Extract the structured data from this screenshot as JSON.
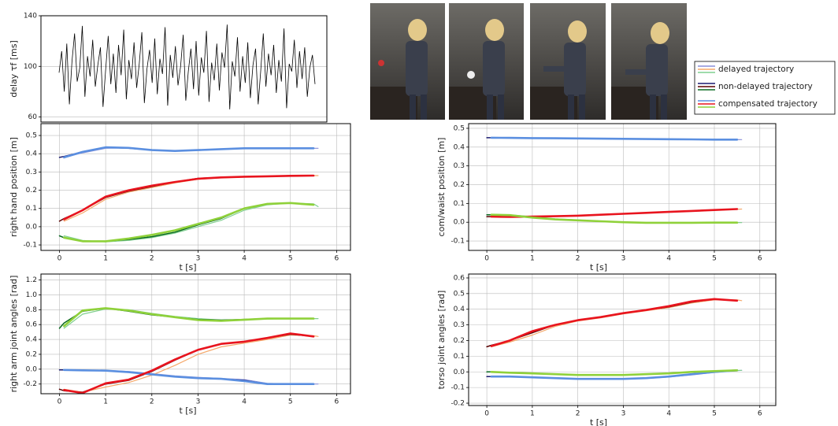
{
  "chart_data": [
    {
      "type": "line",
      "ylabel": "delay τf [ms]",
      "ylim": [
        56,
        140
      ],
      "yticks": [
        60,
        100,
        140
      ],
      "color": "#000000",
      "values": [
        95,
        112,
        80,
        118,
        70,
        104,
        126,
        88,
        99,
        132,
        76,
        108,
        92,
        121,
        84,
        101,
        115,
        68,
        97,
        124,
        86,
        110,
        79,
        117,
        93,
        129,
        74,
        105,
        90,
        119,
        83,
        102,
        127,
        71,
        98,
        113,
        87,
        122,
        78,
        106,
        94,
        131,
        69,
        109,
        91,
        116,
        85,
        100,
        125,
        73,
        96,
        114,
        82,
        120,
        77,
        107,
        95,
        128,
        72,
        103,
        89,
        118,
        81,
        111,
        99,
        133,
        66,
        104,
        92,
        123,
        80,
        108,
        87,
        119,
        75,
        101,
        114,
        70,
        97,
        126,
        84,
        110,
        93,
        117,
        79,
        105,
        88,
        130,
        67,
        102,
        96,
        121,
        83,
        112,
        90,
        115,
        76,
        99,
        109,
        86
      ]
    },
    {
      "type": "line",
      "ylabel": "right hand position [m]",
      "xlabel": "t [s]",
      "xlim": [
        -0.4,
        6.3
      ],
      "ylim": [
        -0.13,
        0.565
      ],
      "xticks": [
        0,
        1,
        2,
        3,
        4,
        5,
        6
      ],
      "yticks": [
        0.5,
        0.4,
        0.3,
        0.2,
        0.1,
        {
          "value": 0,
          "label": "0.0"
        },
        -0.1
      ],
      "x": [
        0,
        0.1,
        0.5,
        1,
        1.5,
        2,
        2.5,
        3,
        3.5,
        4,
        4.5,
        5,
        5.5,
        5.6
      ],
      "series": [
        {
          "name": "delayed trajectory",
          "color": "#8a8fd8",
          "values": [
            null,
            0.38,
            0.405,
            0.43,
            0.432,
            0.422,
            0.415,
            0.418,
            0.424,
            0.428,
            0.43,
            0.43,
            0.43,
            0.43
          ]
        },
        {
          "name": "delayed trajectory",
          "color": "#f5a86a",
          "values": [
            null,
            0.03,
            0.075,
            0.15,
            0.19,
            0.215,
            0.24,
            0.26,
            0.268,
            0.272,
            0.275,
            0.278,
            0.28,
            0.28
          ]
        },
        {
          "name": "delayed trajectory",
          "color": "#7fcf8f",
          "values": [
            null,
            -0.05,
            -0.075,
            -0.083,
            -0.075,
            -0.06,
            -0.035,
            0.0,
            0.035,
            0.09,
            0.12,
            0.13,
            0.125,
            0.11
          ]
        },
        {
          "name": "non-delayed trajectory",
          "color": "#1a1a70",
          "values": [
            0.38,
            0.385,
            0.41,
            0.435,
            0.43,
            0.42,
            0.415,
            0.42,
            0.425,
            0.43,
            0.43,
            0.43,
            0.43,
            null
          ]
        },
        {
          "name": "non-delayed trajectory",
          "color": "#5a0000",
          "values": [
            0.03,
            0.045,
            0.09,
            0.16,
            0.195,
            0.22,
            0.245,
            0.265,
            0.27,
            0.275,
            0.275,
            0.28,
            0.28,
            null
          ]
        },
        {
          "name": "non-delayed trajectory",
          "color": "#0a6a20",
          "values": [
            -0.05,
            -0.06,
            -0.08,
            -0.08,
            -0.07,
            -0.055,
            -0.03,
            0.01,
            0.045,
            0.1,
            0.125,
            0.13,
            0.12,
            null
          ]
        },
        {
          "name": "compensated trajectory",
          "color": "#5b8fe0",
          "values": [
            null,
            0.38,
            0.41,
            0.435,
            0.432,
            0.42,
            0.415,
            0.42,
            0.425,
            0.43,
            0.43,
            0.43,
            0.43,
            null
          ]
        },
        {
          "name": "compensated trajectory",
          "color": "#e8141e",
          "values": [
            null,
            0.04,
            0.09,
            0.165,
            0.2,
            0.225,
            0.245,
            0.263,
            0.27,
            0.274,
            0.276,
            0.279,
            0.28,
            null
          ]
        },
        {
          "name": "compensated trajectory",
          "color": "#8fd13a",
          "values": [
            null,
            -0.06,
            -0.08,
            -0.08,
            -0.065,
            -0.045,
            -0.02,
            0.015,
            0.05,
            0.1,
            0.125,
            0.13,
            0.12,
            null
          ]
        }
      ]
    },
    {
      "type": "line",
      "ylabel": "right arm joint angles [rad]",
      "xlabel": "t [s]",
      "xlim": [
        -0.4,
        6.3
      ],
      "ylim": [
        -0.33,
        1.28
      ],
      "xticks": [
        0,
        1,
        2,
        3,
        4,
        5,
        6
      ],
      "yticks": [
        1.2,
        {
          "value": 1,
          "label": "1.0"
        },
        0.8,
        0.6,
        0.4,
        0.2,
        {
          "value": 0,
          "label": "0.0"
        },
        -0.2
      ],
      "x": [
        0,
        0.1,
        0.5,
        1,
        1.5,
        2,
        2.5,
        3,
        3.5,
        4,
        4.5,
        5,
        5.5,
        5.6
      ],
      "series": [
        {
          "name": "delayed trajectory",
          "color": "#8a8fd8",
          "values": [
            null,
            -0.01,
            -0.012,
            -0.018,
            -0.03,
            -0.06,
            -0.09,
            -0.11,
            -0.125,
            -0.14,
            -0.19,
            -0.2,
            -0.2,
            -0.2
          ]
        },
        {
          "name": "delayed trajectory",
          "color": "#f5a86a",
          "values": [
            null,
            -0.27,
            -0.31,
            -0.24,
            -0.18,
            -0.08,
            0.05,
            0.2,
            0.3,
            0.35,
            0.4,
            0.46,
            0.45,
            0.44
          ]
        },
        {
          "name": "delayed trajectory",
          "color": "#7fcf8f",
          "values": [
            null,
            0.55,
            0.74,
            0.81,
            0.8,
            0.75,
            0.71,
            0.68,
            0.66,
            0.665,
            0.675,
            0.68,
            0.68,
            0.68
          ]
        },
        {
          "name": "non-delayed trajectory",
          "color": "#1a1a70",
          "values": [
            -0.01,
            -0.01,
            -0.015,
            -0.02,
            -0.04,
            -0.07,
            -0.1,
            -0.12,
            -0.13,
            -0.15,
            -0.2,
            -0.2,
            -0.2,
            null
          ]
        },
        {
          "name": "non-delayed trajectory",
          "color": "#5a0000",
          "values": [
            -0.27,
            -0.29,
            -0.31,
            -0.2,
            -0.15,
            -0.03,
            0.12,
            0.26,
            0.34,
            0.37,
            0.42,
            0.47,
            0.44,
            null
          ]
        },
        {
          "name": "non-delayed trajectory",
          "color": "#0a6a20",
          "values": [
            0.55,
            0.62,
            0.78,
            0.82,
            0.78,
            0.73,
            0.7,
            0.67,
            0.66,
            0.67,
            0.68,
            0.68,
            0.68,
            null
          ]
        },
        {
          "name": "compensated trajectory",
          "color": "#5b8fe0",
          "values": [
            null,
            -0.01,
            -0.015,
            -0.02,
            -0.04,
            -0.07,
            -0.1,
            -0.12,
            -0.13,
            -0.16,
            -0.2,
            -0.2,
            -0.2,
            null
          ]
        },
        {
          "name": "compensated trajectory",
          "color": "#e8141e",
          "values": [
            null,
            -0.28,
            -0.32,
            -0.19,
            -0.14,
            -0.02,
            0.13,
            0.26,
            0.34,
            0.37,
            0.42,
            0.48,
            0.44,
            null
          ]
        },
        {
          "name": "compensated trajectory",
          "color": "#8fd13a",
          "values": [
            null,
            0.58,
            0.79,
            0.82,
            0.79,
            0.74,
            0.7,
            0.66,
            0.65,
            0.665,
            0.68,
            0.68,
            0.68,
            null
          ]
        }
      ]
    },
    {
      "type": "line",
      "ylabel": "com/waist position [m]",
      "xlabel": "t [s]",
      "xlim": [
        -0.4,
        6.35
      ],
      "ylim": [
        -0.15,
        0.525
      ],
      "xticks": [
        0,
        1,
        2,
        3,
        4,
        5,
        6
      ],
      "yticks": [
        0.5,
        0.4,
        0.3,
        0.2,
        0.1,
        {
          "value": 0,
          "label": "0.0"
        },
        -0.1
      ],
      "x": [
        0,
        0.1,
        0.5,
        1,
        1.5,
        2,
        2.5,
        3,
        3.5,
        4,
        4.5,
        5,
        5.5,
        5.6
      ],
      "series": [
        {
          "name": "delayed trajectory",
          "color": "#8a8fd8",
          "values": [
            null,
            0.45,
            0.449,
            0.448,
            0.447,
            0.446,
            0.445,
            0.444,
            0.443,
            0.442,
            0.441,
            0.44,
            0.44,
            0.44
          ]
        },
        {
          "name": "delayed trajectory",
          "color": "#f5a86a",
          "values": [
            null,
            0.03,
            0.028,
            0.029,
            0.031,
            0.034,
            0.039,
            0.044,
            0.049,
            0.054,
            0.059,
            0.064,
            0.069,
            0.07
          ]
        },
        {
          "name": "delayed trajectory",
          "color": "#7fcf8f",
          "values": [
            null,
            0.04,
            0.039,
            0.03,
            0.018,
            0.012,
            0.006,
            0.001,
            -0.002,
            -0.003,
            -0.003,
            -0.002,
            -0.002,
            -0.002
          ]
        },
        {
          "name": "non-delayed trajectory",
          "color": "#1a1a70",
          "values": [
            0.45,
            0.45,
            0.449,
            0.448,
            0.447,
            0.446,
            0.445,
            0.444,
            0.443,
            0.442,
            0.441,
            0.44,
            0.44,
            null
          ]
        },
        {
          "name": "non-delayed trajectory",
          "color": "#5a0000",
          "values": [
            0.03,
            0.03,
            0.028,
            0.03,
            0.032,
            0.035,
            0.04,
            0.045,
            0.05,
            0.055,
            0.06,
            0.065,
            0.07,
            null
          ]
        },
        {
          "name": "non-delayed trajectory",
          "color": "#0a6a20",
          "values": [
            0.04,
            0.04,
            0.038,
            0.025,
            0.015,
            0.01,
            0.005,
            0,
            -0.003,
            -0.003,
            -0.003,
            -0.002,
            -0.002,
            null
          ]
        },
        {
          "name": "compensated trajectory",
          "color": "#5b8fe0",
          "values": [
            null,
            0.45,
            0.449,
            0.448,
            0.447,
            0.446,
            0.445,
            0.444,
            0.443,
            0.442,
            0.441,
            0.44,
            0.44,
            null
          ]
        },
        {
          "name": "compensated trajectory",
          "color": "#e8141e",
          "values": [
            null,
            0.03,
            0.028,
            0.03,
            0.032,
            0.035,
            0.04,
            0.045,
            0.05,
            0.055,
            0.06,
            0.065,
            0.07,
            null
          ]
        },
        {
          "name": "compensated trajectory",
          "color": "#8fd13a",
          "values": [
            null,
            0.04,
            0.038,
            0.025,
            0.015,
            0.01,
            0.005,
            0,
            -0.003,
            -0.003,
            -0.003,
            -0.002,
            -0.002,
            null
          ]
        }
      ]
    },
    {
      "type": "line",
      "ylabel": "torso joint angles [rad]",
      "xlabel": "t [s]",
      "xlim": [
        -0.4,
        6.35
      ],
      "ylim": [
        -0.215,
        0.625
      ],
      "xticks": [
        0,
        1,
        2,
        3,
        4,
        5,
        6
      ],
      "yticks": [
        0.6,
        0.5,
        0.4,
        0.3,
        0.2,
        0.1,
        {
          "value": 0,
          "label": "0.0"
        },
        -0.1,
        -0.2
      ],
      "x": [
        0,
        0.1,
        0.5,
        1,
        1.5,
        2,
        2.5,
        3,
        3.5,
        4,
        4.5,
        5,
        5.5,
        5.6
      ],
      "series": [
        {
          "name": "delayed trajectory",
          "color": "#8a8fd8",
          "values": [
            null,
            -0.03,
            -0.03,
            -0.033,
            -0.038,
            -0.043,
            -0.045,
            -0.045,
            -0.042,
            -0.033,
            -0.02,
            -0.003,
            0.008,
            0.01
          ]
        },
        {
          "name": "delayed trajectory",
          "color": "#f5a86a",
          "values": [
            null,
            0.16,
            0.19,
            0.235,
            0.29,
            0.325,
            0.345,
            0.37,
            0.39,
            0.41,
            0.44,
            0.46,
            0.46,
            0.455
          ]
        },
        {
          "name": "delayed trajectory",
          "color": "#7fcf8f",
          "values": [
            null,
            0,
            -0.004,
            -0.009,
            -0.014,
            -0.019,
            -0.02,
            -0.02,
            -0.016,
            -0.011,
            -0.002,
            0.004,
            0.009,
            0.01
          ]
        },
        {
          "name": "non-delayed trajectory",
          "color": "#1a1a70",
          "values": [
            -0.03,
            -0.03,
            -0.03,
            -0.035,
            -0.04,
            -0.045,
            -0.045,
            -0.045,
            -0.04,
            -0.03,
            -0.015,
            0,
            0.01,
            null
          ]
        },
        {
          "name": "non-delayed trajectory",
          "color": "#5a0000",
          "values": [
            0.16,
            0.17,
            0.2,
            0.25,
            0.3,
            0.33,
            0.35,
            0.375,
            0.395,
            0.415,
            0.445,
            0.465,
            0.455,
            null
          ]
        },
        {
          "name": "non-delayed trajectory",
          "color": "#0a6a20",
          "values": [
            0,
            0,
            -0.005,
            -0.01,
            -0.015,
            -0.02,
            -0.02,
            -0.02,
            -0.015,
            -0.01,
            0,
            0.005,
            0.01,
            null
          ]
        },
        {
          "name": "compensated trajectory",
          "color": "#5b8fe0",
          "values": [
            null,
            -0.03,
            -0.03,
            -0.035,
            -0.04,
            -0.045,
            -0.045,
            -0.045,
            -0.04,
            -0.03,
            -0.015,
            0,
            0.01,
            null
          ]
        },
        {
          "name": "compensated trajectory",
          "color": "#e8141e",
          "values": [
            null,
            0.165,
            0.2,
            0.26,
            0.3,
            0.33,
            0.35,
            0.375,
            0.395,
            0.42,
            0.45,
            0.465,
            0.455,
            null
          ]
        },
        {
          "name": "compensated trajectory",
          "color": "#8fd13a",
          "values": [
            null,
            0,
            -0.005,
            -0.01,
            -0.015,
            -0.02,
            -0.02,
            -0.02,
            -0.015,
            -0.01,
            0,
            0.005,
            0.01,
            null
          ]
        }
      ]
    }
  ]
}
